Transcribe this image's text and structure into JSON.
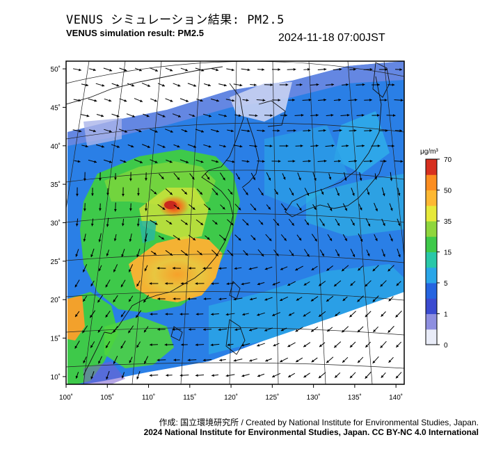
{
  "header": {
    "title_jp": "VENUS シミュレーション結果: PM2.5",
    "title_en": "VENUS simulation result: PM2.5",
    "timestamp": "2024-11-18 07:00JST"
  },
  "map": {
    "lon_ticks": [
      "100˚",
      "105˚",
      "110˚",
      "115˚",
      "120˚",
      "125˚",
      "130˚",
      "135˚",
      "140˚"
    ],
    "lat_ticks": [
      "50˚",
      "45˚",
      "40˚",
      "35˚",
      "30˚",
      "25˚",
      "20˚",
      "15˚",
      "10˚"
    ],
    "lon_range": [
      100,
      141
    ],
    "lat_range": [
      9,
      51
    ]
  },
  "colorbar": {
    "unit": "μg/m³",
    "labels": [
      "70",
      "50",
      "35",
      "15",
      "5",
      "1",
      "0"
    ],
    "colors": [
      "#d7301f",
      "#fc8d20",
      "#fdb833",
      "#e6e93a",
      "#8fd63d",
      "#3ec94a",
      "#29c8a8",
      "#2aa6e8",
      "#2564e0",
      "#3b4bd0",
      "#8e8fe0",
      "#e9ecf8"
    ]
  },
  "footer": {
    "credit": "作成: 国立環境研究所 / Created by National Institute for Environmental Studies, Japan.",
    "license": "2024 National Institute for Environmental Studies, Japan. CC BY-NC 4.0 International"
  }
}
